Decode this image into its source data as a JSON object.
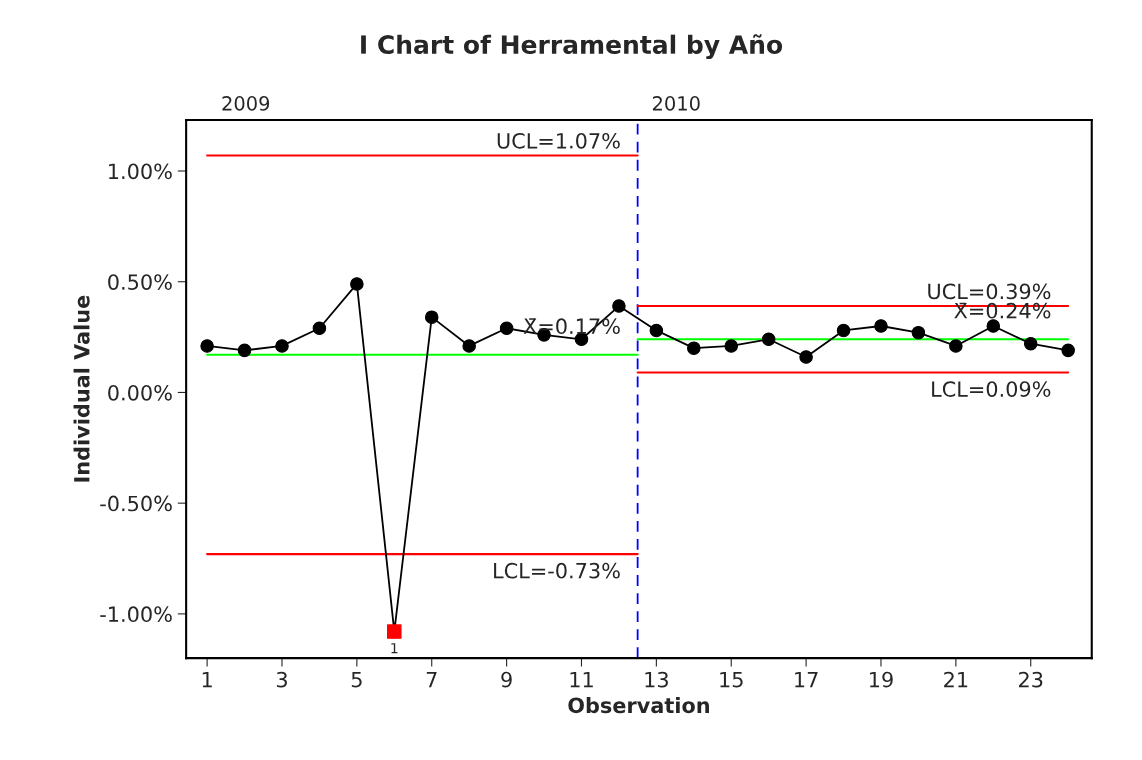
{
  "chart_data": {
    "type": "line",
    "title": "I Chart of Herramental by Año",
    "xlabel": "Observation",
    "ylabel": "Individual Value",
    "x": [
      1,
      2,
      3,
      4,
      5,
      6,
      7,
      8,
      9,
      10,
      11,
      12,
      13,
      14,
      15,
      16,
      17,
      18,
      19,
      20,
      21,
      22,
      23,
      24
    ],
    "series": [
      {
        "color": "#000000",
        "marker": "circle",
        "values": [
          0.21,
          0.19,
          0.21,
          0.29,
          0.49,
          -1.08,
          0.34,
          0.21,
          0.29,
          0.26,
          0.24,
          0.39,
          0.28,
          0.2,
          0.21,
          0.24,
          0.16,
          0.28,
          0.3,
          0.27,
          0.21,
          0.3,
          0.22,
          0.19
        ]
      },
      {
        "type": "scatter",
        "color": "#ff0000",
        "marker": "square",
        "x": [
          6
        ],
        "values": [
          -1.08
        ]
      },
      {
        "type": "line",
        "color": "#ff0000",
        "x": [
          1,
          12.5
        ],
        "values": [
          1.07,
          1.07
        ]
      },
      {
        "type": "line",
        "color": "#00ff00",
        "x": [
          1,
          12.5
        ],
        "values": [
          0.17,
          0.17
        ]
      },
      {
        "type": "line",
        "color": "#ff0000",
        "x": [
          1,
          12.5
        ],
        "values": [
          -0.73,
          -0.73
        ]
      },
      {
        "type": "line",
        "color": "#ff0000",
        "x": [
          12.5,
          24
        ],
        "values": [
          0.39,
          0.39
        ]
      },
      {
        "type": "line",
        "color": "#00ff00",
        "x": [
          12.5,
          24
        ],
        "values": [
          0.24,
          0.24
        ]
      },
      {
        "type": "line",
        "color": "#ff0000",
        "x": [
          12.5,
          24
        ],
        "values": [
          0.09,
          0.09
        ]
      }
    ],
    "ref_lines": [
      {
        "axis": "x",
        "value": 12.5,
        "color": "#0000ff",
        "line_style": "dashed"
      }
    ],
    "annotations": [
      {
        "text": "UCL=1.07%",
        "x": 12.5,
        "y": 1.07
      },
      {
        "text": "X̄=0.17%",
        "x": 12.5,
        "y": 0.17
      },
      {
        "text": "LCL=-0.73%",
        "x": 12.5,
        "y": -0.73
      },
      {
        "text": "UCL=0.39%",
        "x": 24,
        "y": 0.39
      },
      {
        "text": "X̄=0.24%",
        "x": 24,
        "y": 0.24
      },
      {
        "text": "LCL=0.09%",
        "x": 24,
        "y": 0.09
      },
      {
        "text": "1",
        "x": 6,
        "y": -1.08
      },
      "2009",
      "2010"
    ],
    "xlim": [
      0.44,
      24.63
    ],
    "ylim": [
      -1.2,
      1.23
    ],
    "xticks": [
      1,
      3,
      5,
      7,
      9,
      11,
      13,
      15,
      17,
      19,
      21,
      23
    ],
    "yticks": [
      {
        "value": -1.0,
        "label": "-1.00%"
      },
      {
        "value": -0.5,
        "label": "-0.50%"
      },
      {
        "value": 0,
        "label": "0.00%"
      },
      {
        "value": 0.5,
        "label": "0.50%"
      },
      {
        "value": 1.0,
        "label": "1.00%"
      }
    ],
    "grid": false,
    "legend": false
  }
}
